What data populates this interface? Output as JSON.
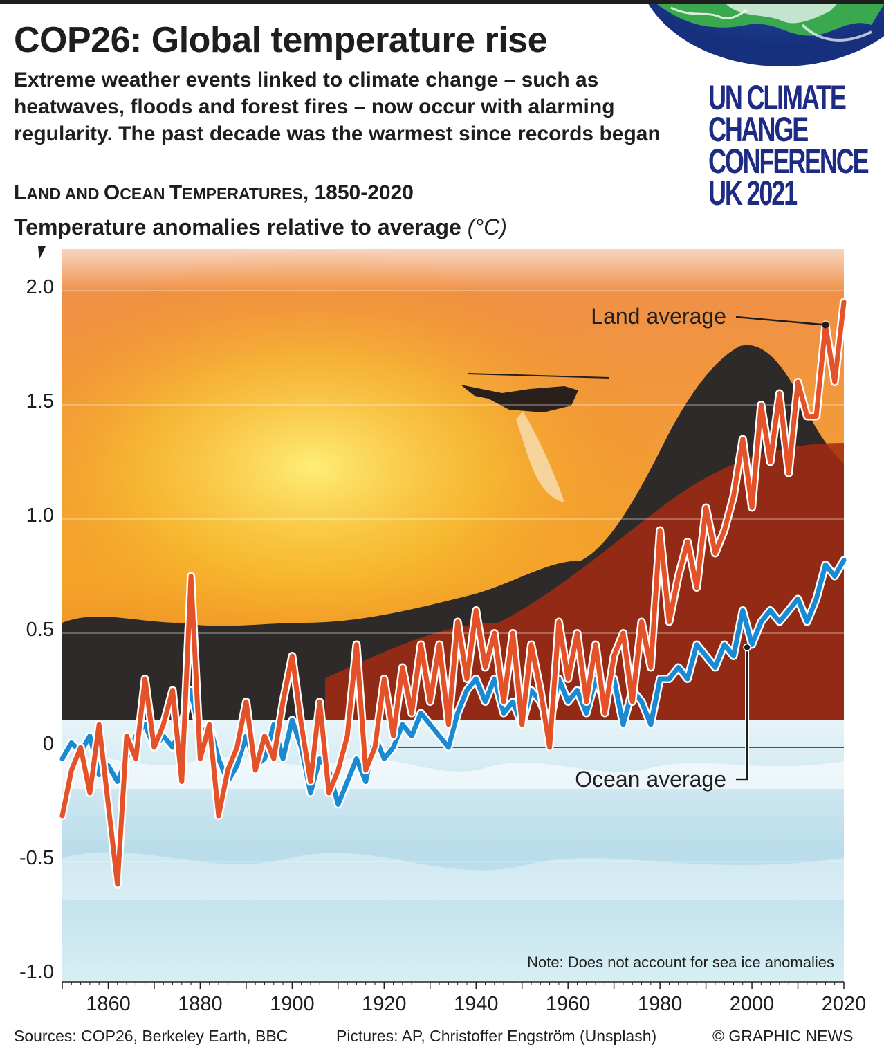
{
  "header": {
    "title": "COP26: Global temperature rise",
    "intro": "Extreme weather events linked to climate change – such as heatwaves, floods and forest fires – now occur with alarming regularity. The past decade was the warmest since records began",
    "subtitle_land": "L",
    "subtitle_land_rest": "AND AND ",
    "subtitle_ocean": "O",
    "subtitle_ocean_rest": "CEAN ",
    "subtitle_temp": "T",
    "subtitle_temp_rest": "EMPERATURES",
    "subtitle_years": ", 1850-2020",
    "measure": "Temperature anomalies relative to average",
    "unit": "(°C)"
  },
  "logo": {
    "lines": [
      "UN CLIMATE",
      "CHANGE",
      "CONFERENCE",
      "UK 2021"
    ],
    "color": "#1d2b84"
  },
  "chart_data": {
    "type": "line",
    "xlim": [
      1850,
      2020
    ],
    "ylim": [
      -1.0,
      2.0
    ],
    "yticks": [
      2.0,
      1.5,
      1.0,
      0.5,
      0,
      -0.5,
      -1.0
    ],
    "ytick_labels": [
      "2.0",
      "1.5",
      "1.0",
      "0.5",
      "0",
      "-0.5",
      "-1.0"
    ],
    "xticks": [
      1860,
      1880,
      1900,
      1920,
      1940,
      1960,
      1980,
      2000,
      2020
    ],
    "xtick_labels": [
      "1860",
      "1880",
      "1900",
      "1920",
      "1940",
      "1960",
      "1980",
      "2000",
      "2020"
    ],
    "grid": true,
    "colors": {
      "land": "#e4522a",
      "ocean": "#1a8ad2",
      "fire_top": "#f07a1c",
      "sea": "#bfe0ee"
    },
    "series": [
      {
        "name": "Land average",
        "color": "#e4522a",
        "x": [
          1850,
          1852,
          1854,
          1856,
          1858,
          1860,
          1862,
          1864,
          1866,
          1868,
          1870,
          1872,
          1874,
          1876,
          1878,
          1880,
          1882,
          1884,
          1886,
          1888,
          1890,
          1892,
          1894,
          1896,
          1898,
          1900,
          1902,
          1904,
          1906,
          1908,
          1910,
          1912,
          1914,
          1916,
          1918,
          1920,
          1922,
          1924,
          1926,
          1928,
          1930,
          1932,
          1934,
          1936,
          1938,
          1940,
          1942,
          1944,
          1946,
          1948,
          1950,
          1952,
          1954,
          1956,
          1958,
          1960,
          1962,
          1964,
          1966,
          1968,
          1970,
          1972,
          1974,
          1976,
          1978,
          1980,
          1982,
          1984,
          1986,
          1988,
          1990,
          1992,
          1994,
          1996,
          1998,
          2000,
          2002,
          2004,
          2006,
          2008,
          2010,
          2012,
          2014,
          2016,
          2018,
          2020
        ],
        "y": [
          -0.3,
          -0.1,
          0.0,
          -0.2,
          0.1,
          -0.25,
          -0.6,
          0.05,
          -0.05,
          0.3,
          0.0,
          0.1,
          0.25,
          -0.15,
          0.75,
          -0.05,
          0.1,
          -0.3,
          -0.1,
          0.0,
          0.2,
          -0.1,
          0.05,
          -0.05,
          0.2,
          0.4,
          0.1,
          -0.15,
          0.2,
          -0.2,
          -0.1,
          0.05,
          0.45,
          -0.1,
          0.0,
          0.3,
          0.05,
          0.35,
          0.15,
          0.45,
          0.2,
          0.45,
          0.1,
          0.55,
          0.3,
          0.6,
          0.35,
          0.5,
          0.2,
          0.5,
          0.1,
          0.45,
          0.25,
          0.0,
          0.55,
          0.3,
          0.5,
          0.2,
          0.45,
          0.15,
          0.4,
          0.5,
          0.2,
          0.55,
          0.35,
          0.95,
          0.55,
          0.75,
          0.9,
          0.7,
          1.05,
          0.85,
          0.95,
          1.1,
          1.35,
          1.05,
          1.5,
          1.25,
          1.55,
          1.2,
          1.6,
          1.45,
          1.45,
          1.85,
          1.6,
          1.95
        ]
      },
      {
        "name": "Ocean average",
        "color": "#1a8ad2",
        "x": [
          1850,
          1852,
          1854,
          1856,
          1858,
          1860,
          1862,
          1864,
          1866,
          1868,
          1870,
          1872,
          1874,
          1876,
          1878,
          1880,
          1882,
          1884,
          1886,
          1888,
          1890,
          1892,
          1894,
          1896,
          1898,
          1900,
          1902,
          1904,
          1906,
          1908,
          1910,
          1912,
          1914,
          1916,
          1918,
          1920,
          1922,
          1924,
          1926,
          1928,
          1930,
          1932,
          1934,
          1936,
          1938,
          1940,
          1942,
          1944,
          1946,
          1948,
          1950,
          1952,
          1954,
          1956,
          1958,
          1960,
          1962,
          1964,
          1966,
          1968,
          1970,
          1972,
          1974,
          1976,
          1978,
          1980,
          1982,
          1984,
          1986,
          1988,
          1990,
          1992,
          1994,
          1996,
          1998,
          2000,
          2002,
          2004,
          2006,
          2008,
          2010,
          2012,
          2014,
          2016,
          2018,
          2020
        ],
        "y": [
          -0.05,
          0.02,
          -0.02,
          0.05,
          -0.12,
          -0.08,
          -0.15,
          -0.05,
          0.05,
          0.1,
          0.0,
          0.05,
          0.0,
          0.1,
          0.25,
          0.05,
          0.1,
          -0.05,
          -0.15,
          -0.08,
          0.05,
          -0.08,
          -0.05,
          0.1,
          -0.05,
          0.12,
          0.0,
          -0.2,
          -0.05,
          -0.1,
          -0.25,
          -0.15,
          -0.05,
          -0.15,
          0.05,
          -0.05,
          0.0,
          0.1,
          0.05,
          0.15,
          0.1,
          0.05,
          0.0,
          0.15,
          0.25,
          0.3,
          0.2,
          0.3,
          0.15,
          0.2,
          0.1,
          0.25,
          0.2,
          0.1,
          0.3,
          0.2,
          0.25,
          0.15,
          0.3,
          0.2,
          0.3,
          0.1,
          0.25,
          0.2,
          0.1,
          0.3,
          0.3,
          0.35,
          0.3,
          0.45,
          0.4,
          0.35,
          0.45,
          0.4,
          0.6,
          0.45,
          0.55,
          0.6,
          0.55,
          0.6,
          0.65,
          0.55,
          0.65,
          0.8,
          0.75,
          0.82
        ]
      }
    ],
    "annotations": {
      "land_label": "Land average",
      "ocean_label": "Ocean average",
      "note": "Note: Does not account for sea ice anomalies"
    }
  },
  "footer": {
    "sources": "Sources: COP26, Berkeley Earth, BBC",
    "pictures": "Pictures: AP, Christoffer Engström (Unsplash)",
    "copyright": "© GRAPHIC NEWS"
  }
}
